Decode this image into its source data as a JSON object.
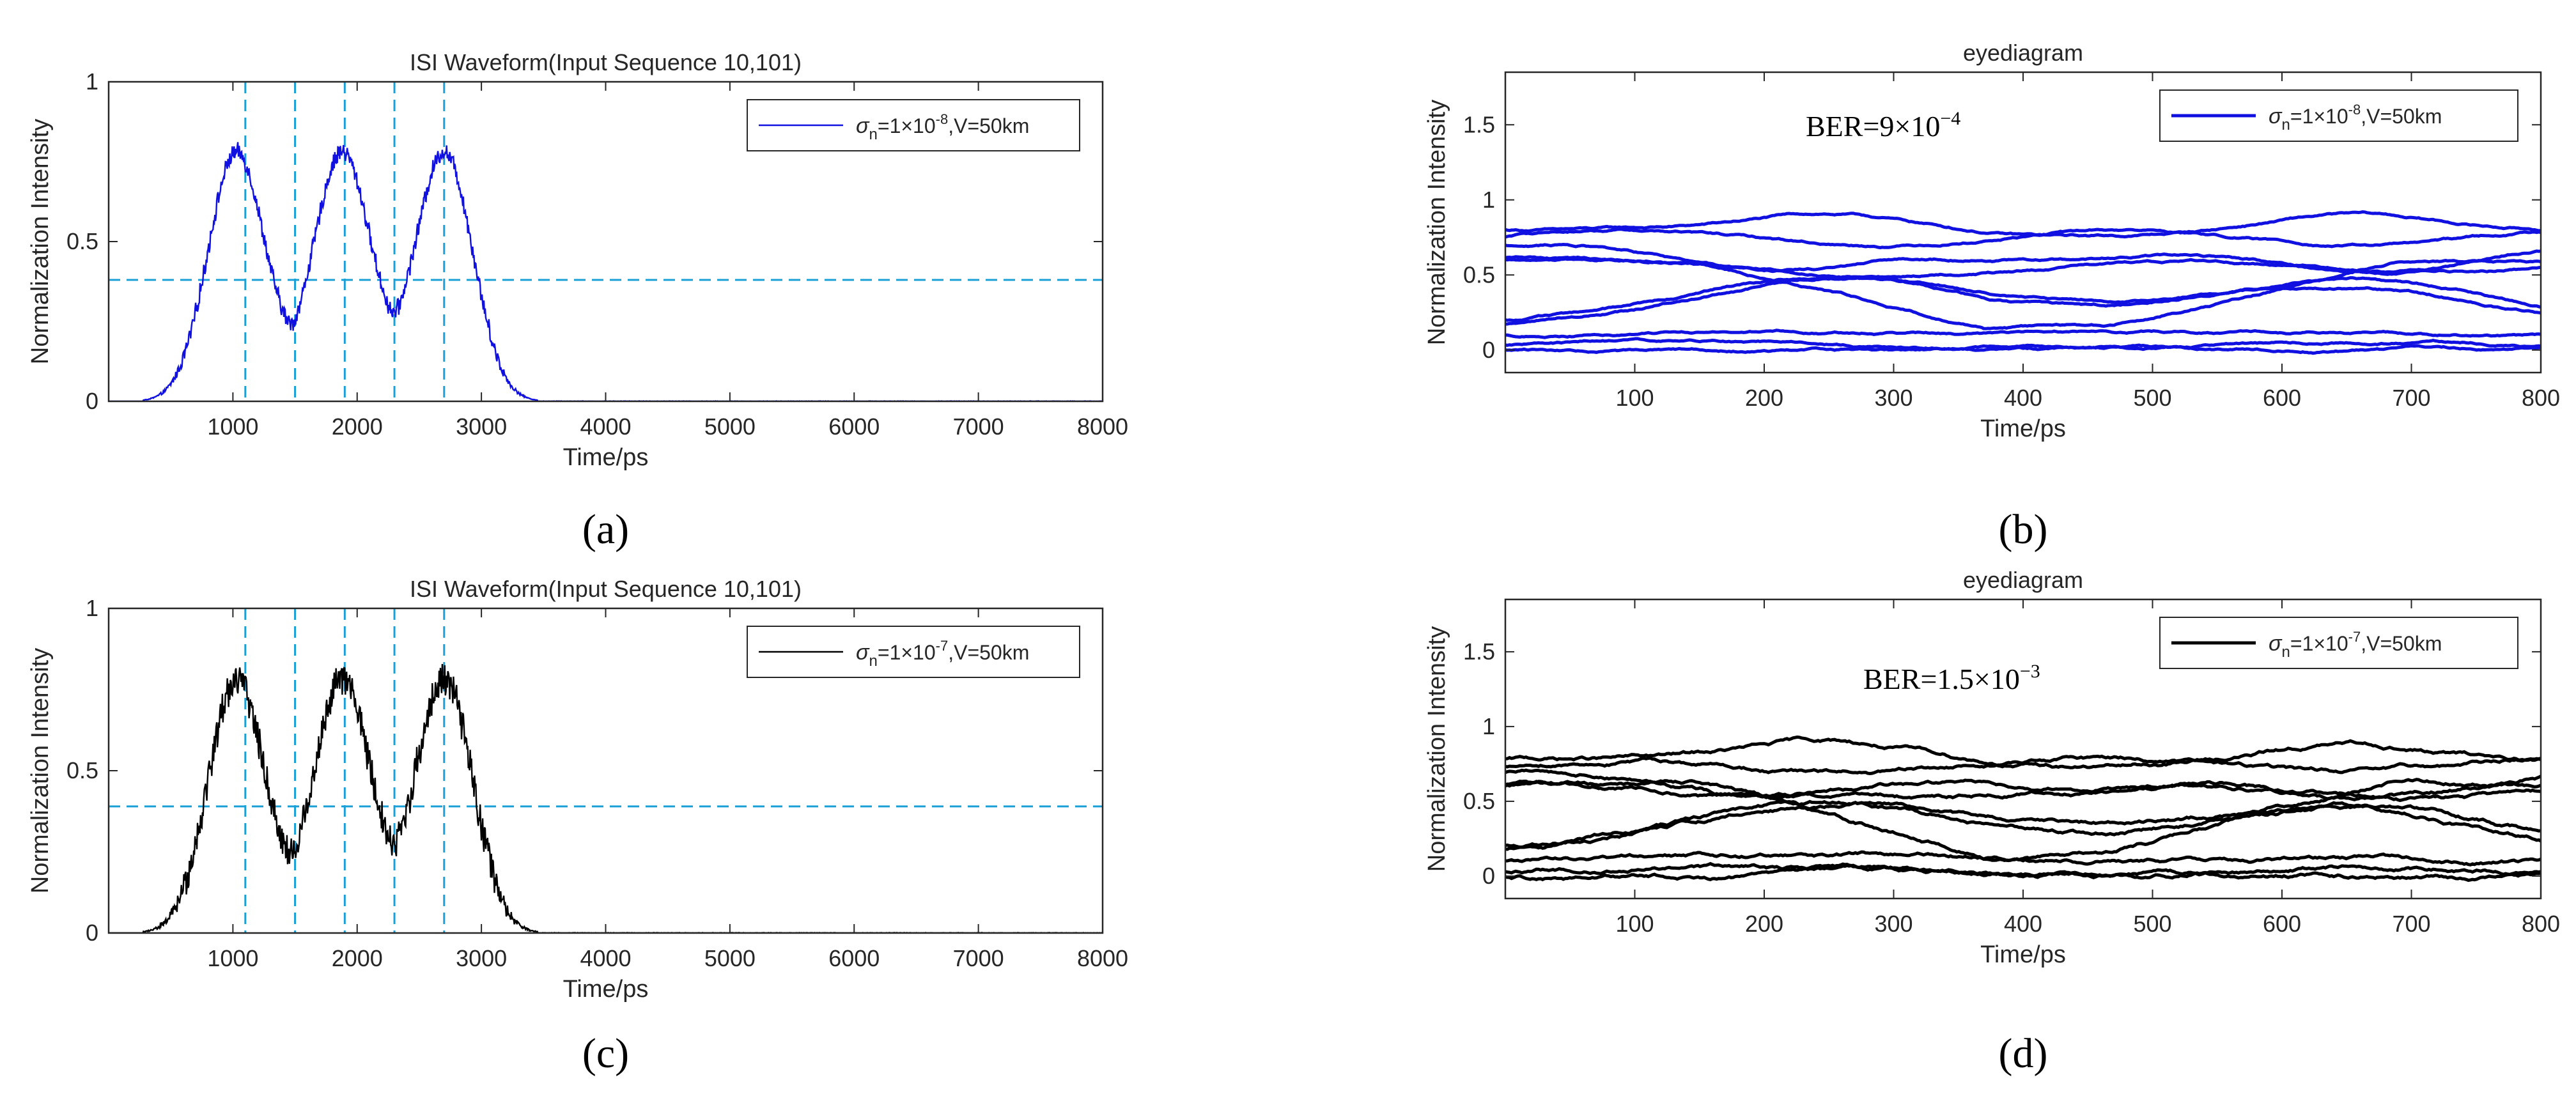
{
  "chart_data": [
    {
      "id": "a",
      "type": "line",
      "caption": "(a)",
      "title": "ISI Waveform(Input Sequence 10,101)",
      "xlabel": "Time/ps",
      "ylabel": "Normalization Intensity",
      "xlim": [
        0,
        8000
      ],
      "ylim": [
        0,
        1
      ],
      "xticks": [
        1000,
        2000,
        3000,
        4000,
        5000,
        6000,
        7000,
        8000
      ],
      "yticks": [
        0,
        0.5,
        1
      ],
      "ytick_labels": [
        "0",
        "0.5",
        "1"
      ],
      "series_color": "#1010e0",
      "legend": {
        "sigma": "σ",
        "sub": "n",
        "text1": "=1×10",
        "exp": "-8",
        "text2": ",V=50km",
        "location": "top-right"
      },
      "threshold": 0.38,
      "vlines": [
        1100,
        1500,
        1900,
        2300,
        2700
      ],
      "noise_level": "low",
      "series": [
        {
          "name": "σn=1×10^-8,V=50km",
          "peaks_at": [
            1000,
            1900,
            2700
          ],
          "peak_value": 0.77
        }
      ]
    },
    {
      "id": "b",
      "type": "line",
      "caption": "(b)",
      "title": "eyediagram",
      "xlabel": "Time/ps",
      "ylabel": "Normalization Intensity",
      "xlim": [
        0,
        800
      ],
      "ylim": [
        -0.15,
        1.85
      ],
      "xticks": [
        100,
        200,
        300,
        400,
        500,
        600,
        700,
        800
      ],
      "yticks": [
        0,
        0.5,
        1,
        1.5
      ],
      "ytick_labels": [
        "0",
        "0.5",
        "1",
        "1.5"
      ],
      "series_color": "#1010e0",
      "ber": {
        "text": "BER=9×10",
        "exp": "−4",
        "color": "#1a8fd0"
      },
      "legend": {
        "sigma": "σ",
        "sub": "n",
        "text1": "=1×10",
        "exp": "-8",
        "text2": ",V=50km",
        "location": "top-right"
      },
      "noise_level": "low",
      "traces_summary": "overlapping eye traces: top level ~0.75-1.0, upper crossing ~0.6, rising/falling transitions, bottom level ~0-0.1"
    },
    {
      "id": "c",
      "type": "line",
      "caption": "(c)",
      "title": "ISI Waveform(Input Sequence 10,101)",
      "xlabel": "Time/ps",
      "ylabel": "Normalization Intensity",
      "xlim": [
        0,
        8000
      ],
      "ylim": [
        0,
        1
      ],
      "xticks": [
        1000,
        2000,
        3000,
        4000,
        5000,
        6000,
        7000,
        8000
      ],
      "yticks": [
        0,
        0.5,
        1
      ],
      "ytick_labels": [
        "0",
        "0.5",
        "1"
      ],
      "series_color": "#000000",
      "legend": {
        "sigma": "σ",
        "sub": "n",
        "text1": "=1×10",
        "exp": "-7",
        "text2": ",V=50km",
        "location": "top-right"
      },
      "threshold": 0.39,
      "vlines": [
        1100,
        1500,
        1900,
        2300,
        2700
      ],
      "noise_level": "high",
      "series": [
        {
          "name": "σn=1×10^-7,V=50km",
          "peaks_at": [
            1000,
            1900,
            2700
          ],
          "peak_value": 0.77
        }
      ]
    },
    {
      "id": "d",
      "type": "line",
      "caption": "(d)",
      "title": "eyediagram",
      "xlabel": "Time/ps",
      "ylabel": "Normalization Intensity",
      "xlim": [
        0,
        800
      ],
      "ylim": [
        -0.15,
        1.85
      ],
      "xticks": [
        100,
        200,
        300,
        400,
        500,
        600,
        700,
        800
      ],
      "yticks": [
        0,
        0.5,
        1,
        1.5
      ],
      "ytick_labels": [
        "0",
        "0.5",
        "1",
        "1.5"
      ],
      "series_color": "#000000",
      "ber": {
        "text": "BER=1.5×10",
        "exp": "−3",
        "color": "#000000"
      },
      "legend": {
        "sigma": "σ",
        "sub": "n",
        "text1": "=1×10",
        "exp": "-7",
        "text2": ",V=50km",
        "location": "top-right"
      },
      "noise_level": "high",
      "traces_summary": "overlapping eye traces: top level ~0.7-0.9, upper crossing ~0.55, rising/falling transitions, bottom level ~0-0.05"
    }
  ]
}
